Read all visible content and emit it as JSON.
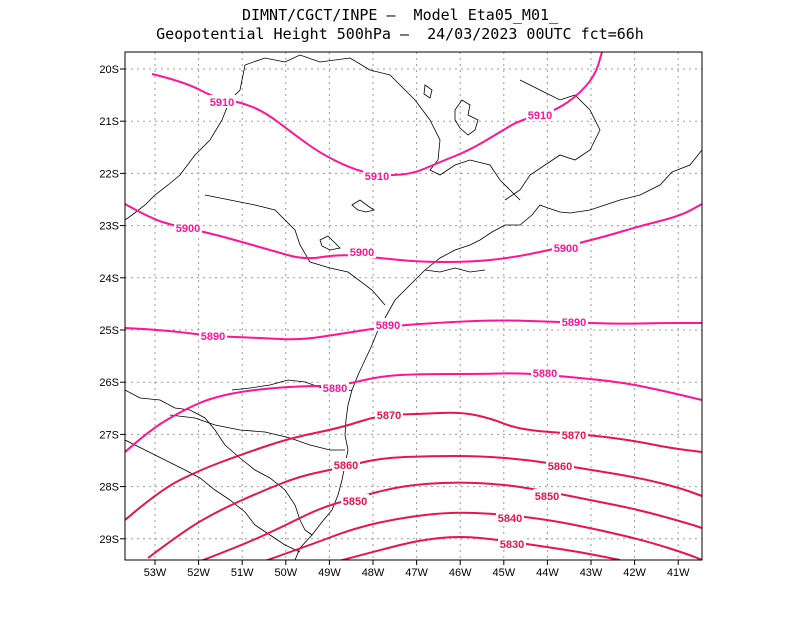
{
  "title_line1": "DIMNT/CGCT/INPE –  Model Eta05_M01_",
  "title_line2": "Geopotential Height 500hPa –  24/03/2023 00UTC fct=66h",
  "lon_labels": [
    "53W",
    "52W",
    "51W",
    "50W",
    "49W",
    "48W",
    "47W",
    "46W",
    "45W",
    "44W",
    "43W",
    "42W",
    "41W"
  ],
  "lat_labels": [
    "20S",
    "21S",
    "22S",
    "23S",
    "24S",
    "25S",
    "26S",
    "27S",
    "28S",
    "29S"
  ],
  "colors": {
    "contour_high": "#ff1493",
    "contour_low": "#e8144c",
    "map": "#000000",
    "grid": "#9a9a9a"
  },
  "contours": [
    {
      "value": 5910,
      "label": "5910",
      "color": "#ff1493",
      "points": [
        [
          152,
          74
        ],
        [
          185,
          82
        ],
        [
          215,
          98
        ],
        [
          240,
          102
        ],
        [
          265,
          112
        ],
        [
          295,
          135
        ],
        [
          320,
          153
        ],
        [
          350,
          168
        ],
        [
          375,
          175
        ],
        [
          410,
          175
        ],
        [
          440,
          162
        ],
        [
          470,
          150
        ],
        [
          500,
          132
        ],
        [
          520,
          120
        ],
        [
          550,
          113
        ],
        [
          575,
          98
        ],
        [
          595,
          76
        ],
        [
          602,
          52
        ]
      ],
      "labels": [
        [
          222,
          102
        ],
        [
          377,
          176
        ],
        [
          540,
          115
        ]
      ]
    },
    {
      "value": 5900,
      "label": "5900",
      "color": "#ff1493",
      "points": [
        [
          125,
          204
        ],
        [
          150,
          218
        ],
        [
          175,
          226
        ],
        [
          205,
          232
        ],
        [
          235,
          240
        ],
        [
          270,
          250
        ],
        [
          305,
          260
        ],
        [
          340,
          254
        ],
        [
          380,
          258
        ],
        [
          420,
          262
        ],
        [
          470,
          262
        ],
        [
          510,
          258
        ],
        [
          550,
          250
        ],
        [
          600,
          238
        ],
        [
          640,
          226
        ],
        [
          680,
          216
        ],
        [
          702,
          204
        ]
      ],
      "labels": [
        [
          188,
          228
        ],
        [
          362,
          252
        ],
        [
          566,
          248
        ]
      ]
    },
    {
      "value": 5890,
      "label": "5890",
      "color": "#ff1493",
      "points": [
        [
          125,
          328
        ],
        [
          165,
          330
        ],
        [
          210,
          336
        ],
        [
          260,
          338
        ],
        [
          300,
          340
        ],
        [
          340,
          334
        ],
        [
          390,
          326
        ],
        [
          450,
          322
        ],
        [
          500,
          320
        ],
        [
          560,
          322
        ],
        [
          620,
          324
        ],
        [
          660,
          323
        ],
        [
          702,
          323
        ]
      ],
      "labels": [
        [
          213,
          336
        ],
        [
          388,
          325
        ],
        [
          574,
          322
        ]
      ]
    },
    {
      "value": 5880,
      "label": "5880",
      "color": "#ff1493",
      "points": [
        [
          125,
          452
        ],
        [
          150,
          430
        ],
        [
          180,
          412
        ],
        [
          210,
          398
        ],
        [
          250,
          390
        ],
        [
          300,
          386
        ],
        [
          340,
          386
        ],
        [
          380,
          376
        ],
        [
          420,
          374
        ],
        [
          480,
          374
        ],
        [
          520,
          373
        ],
        [
          560,
          376
        ],
        [
          620,
          382
        ],
        [
          660,
          390
        ],
        [
          702,
          400
        ]
      ],
      "labels": [
        [
          335,
          388
        ],
        [
          545,
          373
        ]
      ]
    },
    {
      "value": 5870,
      "label": "5870",
      "color": "#e8144c",
      "points": [
        [
          125,
          520
        ],
        [
          160,
          490
        ],
        [
          200,
          470
        ],
        [
          240,
          455
        ],
        [
          290,
          438
        ],
        [
          340,
          428
        ],
        [
          380,
          415
        ],
        [
          420,
          414
        ],
        [
          460,
          412
        ],
        [
          490,
          418
        ],
        [
          520,
          430
        ],
        [
          580,
          434
        ],
        [
          630,
          440
        ],
        [
          670,
          448
        ],
        [
          702,
          452
        ]
      ],
      "labels": [
        [
          389,
          415
        ],
        [
          574,
          435
        ]
      ]
    },
    {
      "value": 5860,
      "label": "5860",
      "color": "#e8144c",
      "points": [
        [
          148,
          558
        ],
        [
          185,
          530
        ],
        [
          220,
          510
        ],
        [
          260,
          492
        ],
        [
          300,
          476
        ],
        [
          340,
          468
        ],
        [
          380,
          458
        ],
        [
          430,
          456
        ],
        [
          480,
          456
        ],
        [
          530,
          460
        ],
        [
          580,
          468
        ],
        [
          640,
          478
        ],
        [
          680,
          488
        ],
        [
          702,
          496
        ]
      ],
      "labels": [
        [
          346,
          465
        ],
        [
          560,
          466
        ]
      ]
    },
    {
      "value": 5850,
      "label": "5850",
      "color": "#e8144c",
      "points": [
        [
          198,
          562
        ],
        [
          240,
          546
        ],
        [
          280,
          528
        ],
        [
          320,
          508
        ],
        [
          355,
          498
        ],
        [
          400,
          486
        ],
        [
          450,
          482
        ],
        [
          500,
          484
        ],
        [
          540,
          490
        ],
        [
          590,
          500
        ],
        [
          640,
          510
        ],
        [
          690,
          524
        ],
        [
          702,
          528
        ]
      ],
      "labels": [
        [
          355,
          501
        ],
        [
          547,
          496
        ]
      ]
    },
    {
      "value": 5840,
      "label": "5840",
      "color": "#e8144c",
      "points": [
        [
          262,
          562
        ],
        [
          310,
          545
        ],
        [
          355,
          528
        ],
        [
          400,
          518
        ],
        [
          450,
          512
        ],
        [
          500,
          514
        ],
        [
          550,
          520
        ],
        [
          600,
          530
        ],
        [
          650,
          542
        ],
        [
          690,
          555
        ],
        [
          702,
          560
        ]
      ],
      "labels": [
        [
          510,
          518
        ]
      ]
    },
    {
      "value": 5830,
      "label": "5830",
      "color": "#e8144c",
      "points": [
        [
          335,
          562
        ],
        [
          380,
          550
        ],
        [
          420,
          540
        ],
        [
          460,
          536
        ],
        [
          500,
          540
        ],
        [
          540,
          546
        ],
        [
          580,
          552
        ],
        [
          620,
          560
        ]
      ],
      "labels": [
        [
          512,
          544
        ]
      ]
    }
  ]
}
